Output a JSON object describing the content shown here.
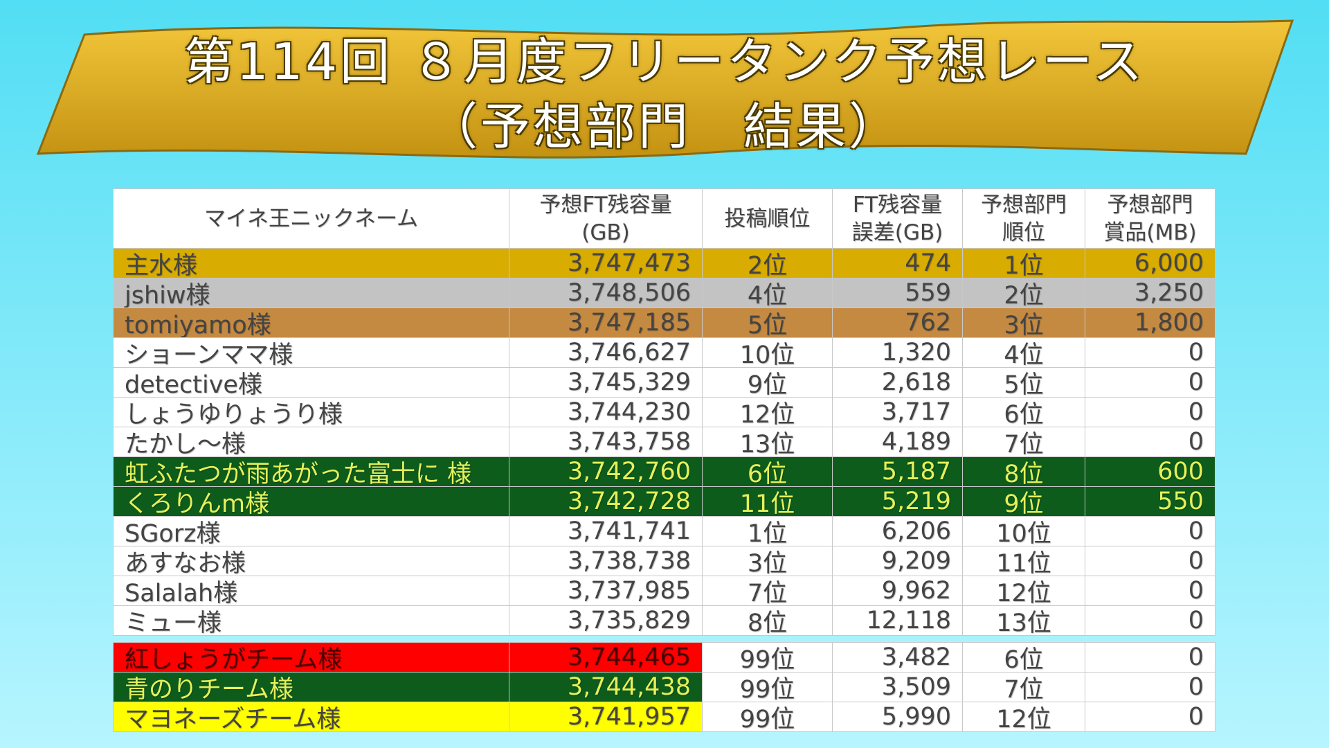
{
  "header": {
    "title": [
      "第114回 ８月度フリータンク予想レース",
      "（予想部門　結果）"
    ]
  },
  "table": {
    "columns": [
      [
        "マイネ王ニックネーム"
      ],
      [
        "予想FT残容量",
        "(GB)"
      ],
      [
        "投稿順位"
      ],
      [
        "FT残容量",
        "誤差(GB)"
      ],
      [
        "予想部門",
        "順位"
      ],
      [
        "予想部門",
        "賞品(MB)"
      ]
    ],
    "rows": [
      [
        "主水様",
        "3,747,473",
        "2位",
        "474",
        "1位",
        "6,000"
      ],
      [
        "jshiw様",
        "3,748,506",
        "4位",
        "559",
        "2位",
        "3,250"
      ],
      [
        "tomiyamo様",
        "3,747,185",
        "5位",
        "762",
        "3位",
        "1,800"
      ],
      [
        "ショーンママ様",
        "3,746,627",
        "10位",
        "1,320",
        "4位",
        "0"
      ],
      [
        "detective様",
        "3,745,329",
        "9位",
        "2,618",
        "5位",
        "0"
      ],
      [
        "しょうゆりょうり様",
        "3,744,230",
        "12位",
        "3,717",
        "6位",
        "0"
      ],
      [
        "たかし～様",
        "3,743,758",
        "13位",
        "4,189",
        "7位",
        "0"
      ],
      [
        "虹ふたつが雨あがった富士に 様",
        "3,742,760",
        "6位",
        "5,187",
        "8位",
        "600"
      ],
      [
        "くろりんm様",
        "3,742,728",
        "11位",
        "5,219",
        "9位",
        "550"
      ],
      [
        "SGorz様",
        "3,741,741",
        "1位",
        "6,206",
        "10位",
        "0"
      ],
      [
        "あすなお様",
        "3,738,738",
        "3位",
        "9,209",
        "11位",
        "0"
      ],
      [
        "Salalah様",
        "3,737,985",
        "7位",
        "9,962",
        "12位",
        "0"
      ],
      [
        "ミュー様",
        "3,735,829",
        "8位",
        "12,118",
        "13位",
        "0"
      ]
    ],
    "team_rows": [
      [
        "紅しょうがチーム様",
        "3,744,465",
        "99位",
        "3,482",
        "6位",
        "0"
      ],
      [
        "青のりチーム様",
        "3,744,438",
        "99位",
        "3,509",
        "7位",
        "0"
      ],
      [
        "マヨネーズチーム様",
        "3,741,957",
        "99位",
        "5,990",
        "12位",
        "0"
      ]
    ]
  }
}
